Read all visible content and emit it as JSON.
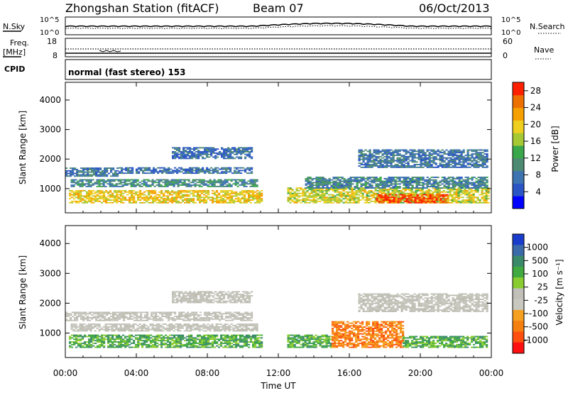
{
  "header": {
    "station": "Zhongshan Station (fitACF)",
    "beam": "Beam 07",
    "date": "06/Oct/2013"
  },
  "strip": {
    "nsky_label": "N.Sky",
    "nsky_top": "10^5",
    "nsky_bottom": "10^0",
    "nsearch_label": "N.Search",
    "nsearch_top": "10^5",
    "nsearch_bottom": "10^0",
    "freq_label": "Freq.",
    "freq_unit": "[MHz]",
    "freq_top": "18",
    "freq_bottom": "8",
    "nave_label": "Nave",
    "nave_top": "60",
    "nave_bottom": "0",
    "cpid_label": "CPID",
    "cpid_value": "normal (fast stereo) 153"
  },
  "chart_data": [
    {
      "type": "heatmap",
      "panel": "power",
      "ylabel": "Slant Range [km]",
      "xlabel": "Time UT",
      "x_ticks": [
        "00:00",
        "04:00",
        "08:00",
        "12:00",
        "16:00",
        "20:00",
        "00:00"
      ],
      "x_hours": [
        0,
        4,
        8,
        12,
        16,
        20,
        24
      ],
      "y_ticks": [
        1000,
        2000,
        3000,
        4000
      ],
      "ylim": [
        180,
        4600
      ],
      "colorbar_label": "Power [dB]",
      "colorbar_ticks": [
        4,
        8,
        12,
        16,
        20,
        24,
        28
      ],
      "colorbar_range": [
        0,
        30
      ],
      "colorbar_colors": [
        "#0000ff",
        "#2b55c4",
        "#3d73b0",
        "#4d8a74",
        "#3aa84a",
        "#a6c832",
        "#eecf20",
        "#f5a000",
        "#ee7000",
        "#ff2000"
      ],
      "echo_regions": [
        {
          "t0": 0.2,
          "t1": 11.0,
          "r0": 500,
          "r1": 950,
          "level": 20
        },
        {
          "t0": 0.3,
          "t1": 10.8,
          "r0": 1050,
          "r1": 1300,
          "level": 10
        },
        {
          "t0": 0.0,
          "t1": 3.0,
          "r0": 1400,
          "r1": 1700,
          "level": 8
        },
        {
          "t0": 3.0,
          "t1": 10.5,
          "r0": 1500,
          "r1": 1700,
          "level": 7
        },
        {
          "t0": 6.0,
          "t1": 10.5,
          "r0": 2000,
          "r1": 2400,
          "level": 7
        },
        {
          "t0": 12.5,
          "t1": 23.8,
          "r0": 500,
          "r1": 1000,
          "level": 18
        },
        {
          "t0": 17.5,
          "t1": 21.5,
          "r0": 500,
          "r1": 800,
          "level": 27
        },
        {
          "t0": 13.5,
          "t1": 23.8,
          "r0": 1000,
          "r1": 1400,
          "level": 9
        },
        {
          "t0": 16.5,
          "t1": 23.8,
          "r0": 1700,
          "r1": 2300,
          "level": 8
        }
      ]
    },
    {
      "type": "heatmap",
      "panel": "velocity",
      "ylabel": "Slant Range [km]",
      "xlabel": "Time UT",
      "x_ticks": [
        "00:00",
        "04:00",
        "08:00",
        "12:00",
        "16:00",
        "20:00",
        "00:00"
      ],
      "x_hours": [
        0,
        4,
        8,
        12,
        16,
        20,
        24
      ],
      "y_ticks": [
        1000,
        2000,
        3000,
        4000
      ],
      "ylim": [
        180,
        4600
      ],
      "colorbar_label": "Velocity [m s⁻¹]",
      "colorbar_ticks": [
        "1000",
        "500",
        "100",
        "25",
        "-25",
        "-100",
        "-500",
        "-1000"
      ],
      "colorbar_colors": [
        "#1a3ccc",
        "#3a6aaa",
        "#3a8a6a",
        "#40aa40",
        "#88cc30",
        "#c0c0b8",
        "#c8c8c0",
        "#f5a020",
        "#f58010",
        "#ff5010",
        "#ff1010"
      ],
      "echo_regions": [
        {
          "t0": 0.2,
          "t1": 11.0,
          "r0": 500,
          "r1": 950,
          "level": "green"
        },
        {
          "t0": 0.3,
          "t1": 10.8,
          "r0": 1050,
          "r1": 1300,
          "level": "grey"
        },
        {
          "t0": 0.0,
          "t1": 10.5,
          "r0": 1400,
          "r1": 1700,
          "level": "grey"
        },
        {
          "t0": 6.0,
          "t1": 10.5,
          "r0": 2000,
          "r1": 2400,
          "level": "grey"
        },
        {
          "t0": 12.5,
          "t1": 15.0,
          "r0": 500,
          "r1": 950,
          "level": "green"
        },
        {
          "t0": 15.0,
          "t1": 19.0,
          "r0": 500,
          "r1": 1400,
          "level": "orange"
        },
        {
          "t0": 19.0,
          "t1": 23.8,
          "r0": 500,
          "r1": 900,
          "level": "green"
        },
        {
          "t0": 16.5,
          "t1": 23.8,
          "r0": 1700,
          "r1": 2300,
          "level": "grey"
        }
      ]
    }
  ]
}
